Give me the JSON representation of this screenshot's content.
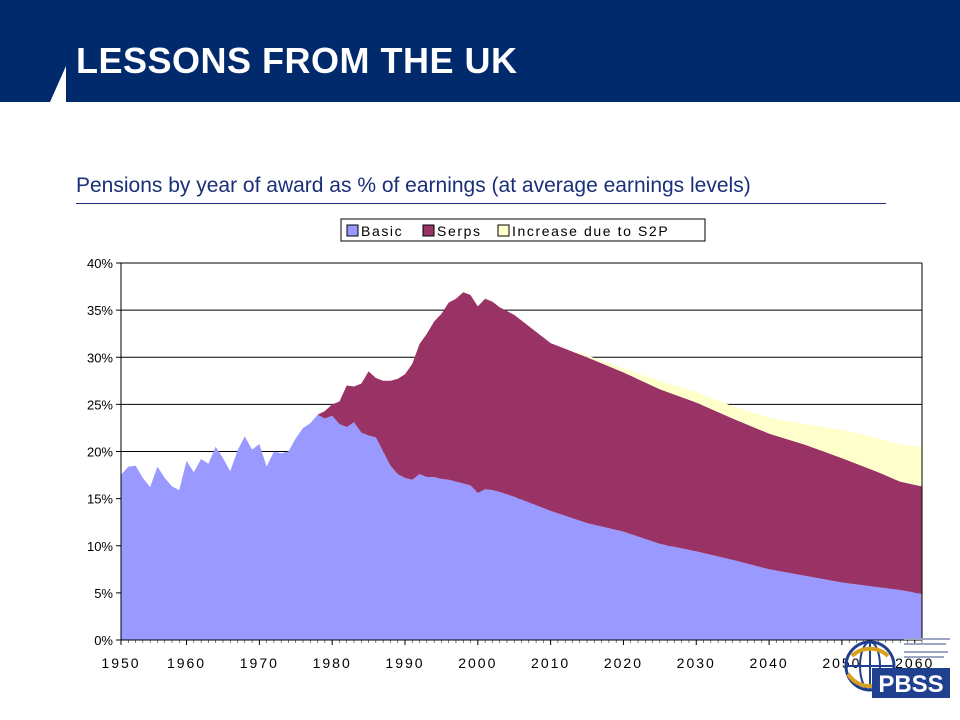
{
  "slide": {
    "title": "LESSONS FROM THE UK",
    "subtitle": "Pensions by year of award as % of earnings (at average earnings levels)"
  },
  "logo": {
    "text": "PBSS"
  },
  "colors": {
    "banner": "#002a6c",
    "basic": "#9999ff",
    "serps": "#993366",
    "s2p": "#ffffcc"
  },
  "chart_data": {
    "type": "area",
    "stacked": true,
    "title": "",
    "xlabel": "",
    "ylabel": "",
    "ylim": [
      0,
      40
    ],
    "xlim": [
      1951,
      2061
    ],
    "grid": "horizontal",
    "legend_position": "top-center",
    "y_ticks": [
      "0%",
      "5%",
      "10%",
      "15%",
      "20%",
      "25%",
      "30%",
      "35%",
      "40%"
    ],
    "x_ticks": [
      "1950",
      "1960",
      "1970",
      "1980",
      "1990",
      "2000",
      "2010",
      "2020",
      "2030",
      "2040",
      "2050",
      "2060"
    ],
    "series": [
      {
        "name": "Basic",
        "color": "#9999ff",
        "points": [
          [
            1951,
            17.5
          ],
          [
            1952,
            18.4
          ],
          [
            1953,
            18.5
          ],
          [
            1954,
            17.2
          ],
          [
            1955,
            16.2
          ],
          [
            1956,
            18.4
          ],
          [
            1957,
            17.2
          ],
          [
            1958,
            16.3
          ],
          [
            1959,
            15.9
          ],
          [
            1960,
            19.0
          ],
          [
            1961,
            17.8
          ],
          [
            1962,
            19.2
          ],
          [
            1963,
            18.7
          ],
          [
            1964,
            20.5
          ],
          [
            1965,
            19.3
          ],
          [
            1966,
            17.9
          ],
          [
            1967,
            20.1
          ],
          [
            1968,
            21.6
          ],
          [
            1969,
            20.2
          ],
          [
            1970,
            20.8
          ],
          [
            1971,
            18.4
          ],
          [
            1972,
            20.0
          ],
          [
            1973,
            19.8
          ],
          [
            1974,
            20.0
          ],
          [
            1975,
            21.4
          ],
          [
            1976,
            22.5
          ],
          [
            1977,
            23.0
          ],
          [
            1978,
            23.9
          ],
          [
            1979,
            23.5
          ],
          [
            1980,
            23.8
          ],
          [
            1981,
            22.9
          ],
          [
            1982,
            22.6
          ],
          [
            1983,
            23.1
          ],
          [
            1984,
            22.0
          ],
          [
            1985,
            21.7
          ],
          [
            1986,
            21.5
          ],
          [
            1987,
            20.0
          ],
          [
            1988,
            18.5
          ],
          [
            1989,
            17.6
          ],
          [
            1990,
            17.2
          ],
          [
            1991,
            17.0
          ],
          [
            1992,
            17.6
          ],
          [
            1993,
            17.3
          ],
          [
            1994,
            17.3
          ],
          [
            1995,
            17.1
          ],
          [
            1996,
            17.0
          ],
          [
            1997,
            16.8
          ],
          [
            1998,
            16.6
          ],
          [
            1999,
            16.4
          ],
          [
            2000,
            15.6
          ],
          [
            2001,
            16.0
          ],
          [
            2002,
            15.9
          ],
          [
            2003,
            15.7
          ],
          [
            2005,
            15.2
          ],
          [
            2010,
            13.7
          ],
          [
            2015,
            12.4
          ],
          [
            2020,
            11.5
          ],
          [
            2025,
            10.2
          ],
          [
            2030,
            9.4
          ],
          [
            2035,
            8.5
          ],
          [
            2040,
            7.5
          ],
          [
            2045,
            6.8
          ],
          [
            2050,
            6.1
          ],
          [
            2055,
            5.6
          ],
          [
            2058,
            5.3
          ],
          [
            2061,
            4.9
          ]
        ]
      },
      {
        "name": "Serps",
        "color": "#993366",
        "points": [
          [
            1951,
            0
          ],
          [
            1978,
            0
          ],
          [
            1979,
            0.8
          ],
          [
            1980,
            1.2
          ],
          [
            1981,
            2.4
          ],
          [
            1982,
            4.4
          ],
          [
            1983,
            3.8
          ],
          [
            1984,
            5.2
          ],
          [
            1985,
            6.8
          ],
          [
            1986,
            6.3
          ],
          [
            1987,
            7.5
          ],
          [
            1988,
            9.0
          ],
          [
            1989,
            10.1
          ],
          [
            1990,
            11.0
          ],
          [
            1991,
            12.3
          ],
          [
            1992,
            13.8
          ],
          [
            1993,
            15.2
          ],
          [
            1994,
            16.5
          ],
          [
            1995,
            17.5
          ],
          [
            1996,
            18.8
          ],
          [
            1997,
            19.4
          ],
          [
            1998,
            20.3
          ],
          [
            1999,
            20.2
          ],
          [
            2000,
            19.8
          ],
          [
            2001,
            20.2
          ],
          [
            2002,
            20.0
          ],
          [
            2003,
            19.6
          ],
          [
            2005,
            19.3
          ],
          [
            2010,
            17.8
          ],
          [
            2015,
            17.6
          ],
          [
            2020,
            16.9
          ],
          [
            2025,
            16.4
          ],
          [
            2030,
            15.8
          ],
          [
            2035,
            15.0
          ],
          [
            2040,
            14.4
          ],
          [
            2045,
            13.9
          ],
          [
            2050,
            13.2
          ],
          [
            2055,
            12.2
          ],
          [
            2058,
            11.5
          ],
          [
            2061,
            11.4
          ]
        ]
      },
      {
        "name": "Increase due to S2P",
        "color": "#ffffcc",
        "points": [
          [
            1951,
            0
          ],
          [
            2012,
            0
          ],
          [
            2015,
            0.2
          ],
          [
            2020,
            0.4
          ],
          [
            2025,
            0.9
          ],
          [
            2030,
            1.1
          ],
          [
            2035,
            1.3
          ],
          [
            2040,
            1.7
          ],
          [
            2045,
            2.2
          ],
          [
            2050,
            3.0
          ],
          [
            2055,
            3.6
          ],
          [
            2061,
            4.2
          ]
        ]
      }
    ]
  }
}
